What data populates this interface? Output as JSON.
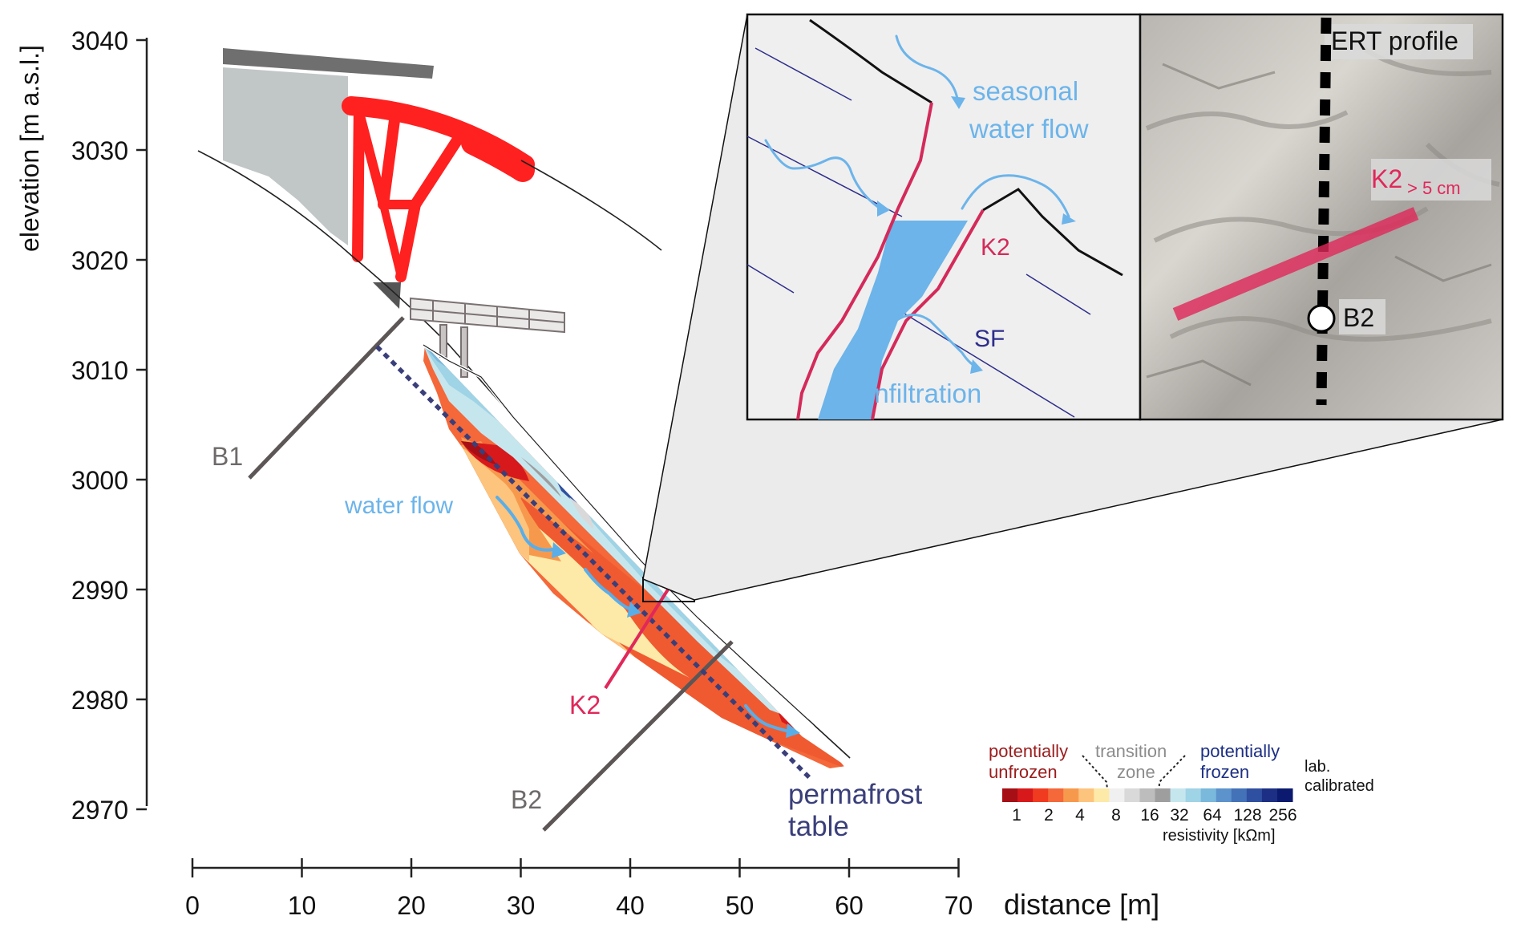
{
  "y_axis": {
    "title": "elevation [m a.s.l.]",
    "ticks": [
      "3040",
      "3030",
      "3020",
      "3010",
      "3000",
      "2990",
      "2980",
      "2970"
    ]
  },
  "x_axis": {
    "title": "distance [m]",
    "ticks": [
      "0",
      "10",
      "20",
      "30",
      "40",
      "50",
      "60",
      "70"
    ]
  },
  "labels": {
    "b1": "B1",
    "b2": "B2",
    "water_flow": "water flow",
    "k2": "K2",
    "permafrost_line1": "permafrost",
    "permafrost_line2": "table"
  },
  "inset": {
    "seasonal_line1": "seasonal",
    "seasonal_line2": "water flow",
    "k2": "K2",
    "sf": "SF",
    "infiltration": "infiltration"
  },
  "photo": {
    "ert_profile": "ERT profile",
    "k2_main": "K2",
    "k2_sub": "> 5 cm",
    "b2": "B2"
  },
  "legend": {
    "unfrozen_line1": "potentially",
    "unfrozen_line2": "unfrozen",
    "transition_line1": "transition",
    "transition_line2": "zone",
    "frozen_line1": "potentially",
    "frozen_line2": "frozen",
    "lab_line1": "lab.",
    "lab_line2": "calibrated",
    "values": [
      "1",
      "2",
      "4",
      "8",
      "16",
      "32",
      "64",
      "128",
      "256"
    ],
    "title": "resistivity [kΩm]",
    "colors": [
      "#a50f15",
      "#d7191c",
      "#f03b20",
      "#f4683a",
      "#f7994d",
      "#fdc47d",
      "#fde9a8",
      "#f0f0f0",
      "#d9d9d9",
      "#bdbdbd",
      "#9e9e9e",
      "#c6e6ee",
      "#9fd3e6",
      "#7ab8dc",
      "#5c93cc",
      "#4472b8",
      "#2f4fa0",
      "#1c2f84",
      "#0b1a6e"
    ]
  },
  "colors": {
    "red_structure": "#ff2020",
    "water_blue": "#6cb4ea",
    "k2_red": "#e0285a",
    "permafrost_navy": "#3a3f7a",
    "borehole_gray": "#5c5656"
  }
}
